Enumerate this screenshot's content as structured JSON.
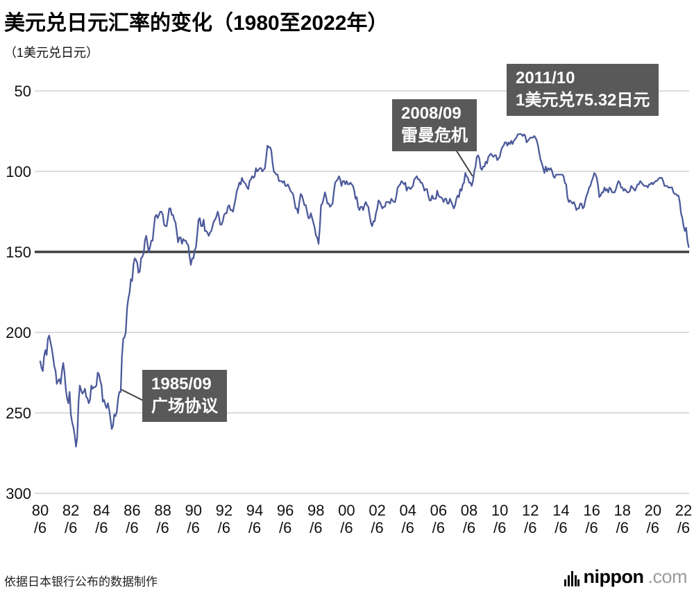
{
  "title": "美元兑日元汇率的变化（1980至2022年）",
  "y_axis_label": "（1美元兑日元）",
  "source_note": "依据日本银行公布的数据制作",
  "logo": {
    "brand": "nippon",
    "suffix": ".com"
  },
  "annotations": [
    {
      "line1": "1985/09",
      "line2": "广场协议"
    },
    {
      "line1": "2008/09",
      "line2": "雷曼危机"
    },
    {
      "line1": "2011/10",
      "line2": "1美元兑75.32日元"
    }
  ],
  "chart_data": {
    "type": "line",
    "title": "美元兑日元汇率的变化（1980至2022年）",
    "ylabel": "1美元兑日元",
    "y_ticks": [
      50,
      100,
      150,
      200,
      250,
      300
    ],
    "ylim": [
      50,
      300
    ],
    "y_axis_inverted": true,
    "highlight_y": 150,
    "grid": true,
    "x_ticks": [
      "80",
      "82",
      "84",
      "86",
      "88",
      "90",
      "92",
      "94",
      "96",
      "98",
      "00",
      "02",
      "04",
      "06",
      "08",
      "10",
      "12",
      "14",
      "16",
      "18",
      "20",
      "22"
    ],
    "x_tick_suffix": "/6",
    "x_start": "1980-06",
    "x_end": "2022-10",
    "line_color": "#4c5a9a",
    "grid_color": "#c8c8c8",
    "highlight_line_color": "#3f3f3f",
    "annotation_bg": "#595959",
    "record_low": {
      "date": "2011/10",
      "value": 75.32
    },
    "values_by_year": [
      [
        218,
        222,
        224,
        215,
        211,
        214,
        204
      ],
      [
        202,
        206,
        210,
        215,
        221,
        224,
        232,
        230,
        229,
        232,
        224,
        219
      ],
      [
        225,
        235,
        241,
        244,
        237,
        251,
        256,
        259,
        264,
        271,
        265,
        243
      ],
      [
        233,
        236,
        238,
        237,
        235,
        240,
        241,
        244,
        242,
        233,
        235,
        234
      ],
      [
        234,
        233,
        225,
        226,
        230,
        233,
        243,
        242,
        245,
        247,
        244,
        248
      ],
      [
        254,
        260,
        258,
        251,
        252,
        249,
        241,
        237,
        237,
        215,
        204,
        203
      ],
      [
        200,
        185,
        179,
        175,
        167,
        168,
        158,
        154,
        155,
        157,
        163,
        162
      ],
      [
        154,
        153,
        151,
        143,
        140,
        145,
        150,
        147,
        143,
        143,
        135,
        128
      ],
      [
        127,
        129,
        127,
        125,
        125,
        127,
        133,
        134,
        134,
        129,
        123,
        123
      ],
      [
        127,
        127,
        130,
        132,
        138,
        144,
        141,
        141,
        145,
        142,
        143,
        143
      ],
      [
        145,
        146,
        153,
        158,
        154,
        154,
        149,
        147,
        139,
        130,
        129,
        134
      ],
      [
        134,
        130,
        137,
        137,
        138,
        140,
        138,
        137,
        134,
        131,
        130,
        128
      ],
      [
        125,
        128,
        133,
        133,
        131,
        127,
        126,
        126,
        122,
        121,
        124,
        124
      ],
      [
        125,
        121,
        117,
        112,
        110,
        107,
        108,
        104,
        106,
        107,
        108,
        110
      ],
      [
        111,
        106,
        105,
        103,
        104,
        103,
        98,
        100,
        99,
        98,
        98,
        100
      ],
      [
        99,
        98,
        91,
        84,
        85,
        85,
        87,
        95,
        100,
        101,
        102,
        102
      ],
      [
        106,
        106,
        106,
        107,
        106,
        109,
        109,
        108,
        110,
        112,
        113,
        114
      ],
      [
        118,
        123,
        123,
        126,
        119,
        114,
        115,
        118,
        121,
        121,
        125,
        129
      ],
      [
        129,
        126,
        129,
        132,
        135,
        140,
        141,
        145,
        135,
        121,
        120,
        117
      ],
      [
        113,
        116,
        120,
        120,
        122,
        121,
        120,
        113,
        107,
        106,
        105,
        103
      ],
      [
        105,
        109,
        106,
        106,
        108,
        106,
        108,
        108,
        107,
        108,
        109,
        112
      ],
      [
        117,
        116,
        122,
        124,
        122,
        122,
        124,
        121,
        119,
        121,
        122,
        127
      ],
      [
        132,
        134,
        131,
        131,
        126,
        123,
        118,
        119,
        121,
        123,
        122,
        122
      ],
      [
        119,
        119,
        119,
        120,
        117,
        118,
        119,
        119,
        115,
        110,
        109,
        108
      ],
      [
        106,
        107,
        108,
        107,
        112,
        110,
        110,
        111,
        110,
        109,
        105,
        104
      ],
      [
        103,
        105,
        105,
        107,
        107,
        109,
        112,
        111,
        111,
        115,
        118,
        118
      ],
      [
        115,
        117,
        117,
        117,
        112,
        115,
        116,
        116,
        117,
        119,
        117,
        117
      ],
      [
        120,
        120,
        117,
        119,
        121,
        123,
        121,
        117,
        115,
        116,
        111,
        112
      ],
      [
        108,
        107,
        101,
        103,
        104,
        107,
        107,
        109,
        106,
        100,
        97,
        91
      ],
      [
        90,
        92,
        98,
        99,
        97,
        97,
        94,
        95,
        91,
        90,
        89,
        90
      ],
      [
        91,
        90,
        90,
        93,
        92,
        91,
        87,
        85,
        84,
        82,
        82,
        84
      ],
      [
        82,
        83,
        81,
        83,
        81,
        80,
        79,
        77,
        77,
        76.7,
        77,
        78
      ],
      [
        77,
        78,
        82,
        81,
        80,
        79,
        79,
        79,
        78,
        79,
        81,
        84
      ],
      [
        89,
        93,
        95,
        98,
        101,
        97,
        100,
        98,
        99,
        98,
        100,
        103
      ],
      [
        104,
        102,
        102,
        102,
        102,
        102,
        102,
        103,
        107,
        108,
        116,
        119
      ],
      [
        118,
        119,
        120,
        119,
        121,
        124,
        123,
        123,
        120,
        120,
        123,
        122
      ],
      [
        118,
        115,
        113,
        110,
        109,
        106,
        104,
        101,
        102,
        104,
        109,
        116
      ],
      [
        115,
        113,
        113,
        110,
        112,
        111,
        113,
        110,
        111,
        113,
        113,
        113
      ],
      [
        111,
        108,
        106,
        107,
        110,
        110,
        112,
        111,
        112,
        113,
        113,
        112
      ],
      [
        109,
        110,
        111,
        112,
        110,
        108,
        108,
        106,
        107,
        108,
        109,
        109
      ],
      [
        109,
        110,
        108,
        108,
        107,
        108,
        107,
        106,
        106,
        105,
        104,
        104
      ],
      [
        104,
        106,
        109,
        109,
        109,
        110,
        110,
        110,
        110,
        113,
        114,
        114
      ],
      [
        115,
        115,
        119,
        126,
        129,
        134,
        137,
        135,
        143,
        147
      ]
    ]
  }
}
